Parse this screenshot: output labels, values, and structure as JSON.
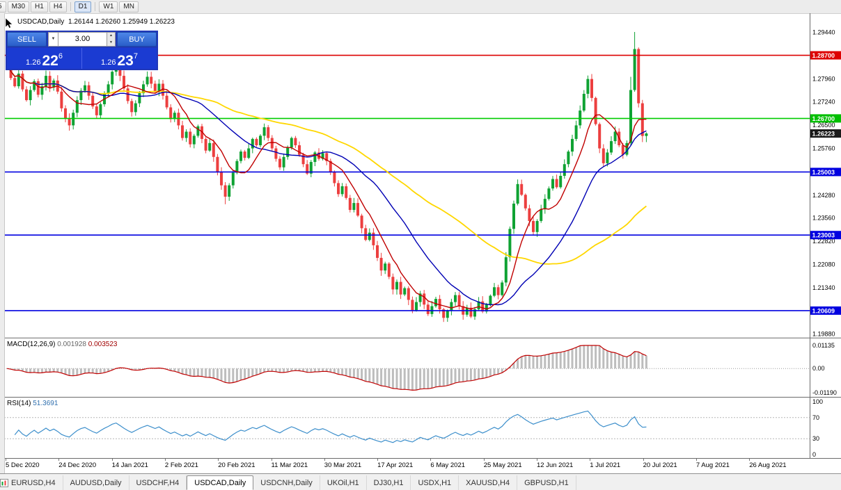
{
  "toolbar": {
    "timeframes": [
      {
        "label": "5",
        "active": false,
        "sep": false
      },
      {
        "label": "M30",
        "active": false,
        "sep": false
      },
      {
        "label": "H1",
        "active": false,
        "sep": false
      },
      {
        "label": "H4",
        "active": false,
        "sep": true
      },
      {
        "label": "D1",
        "active": true,
        "sep": true
      },
      {
        "label": "W1",
        "active": false,
        "sep": false
      },
      {
        "label": "MN",
        "active": false,
        "sep": false
      }
    ]
  },
  "chart": {
    "title": "USDCAD,Daily",
    "ohlc": "1.26144 1.26260 1.25949 1.26223"
  },
  "trade_panel": {
    "sell_label": "SELL",
    "buy_label": "BUY",
    "volume": "3.00",
    "dropdown_icon": "▼",
    "spin_up_icon": "▲",
    "spin_down_icon": "▼",
    "sell_price": {
      "small": "1.26",
      "big": "22",
      "sup": "6"
    },
    "buy_price": {
      "small": "1.26",
      "big": "23",
      "sup": "7"
    }
  },
  "price_axis": {
    "labels": [
      "1.29440",
      "1.27960",
      "1.27240",
      "1.26500",
      "1.25760",
      "1.24280",
      "1.23560",
      "1.22820",
      "1.22080",
      "1.21340",
      "1.19880"
    ],
    "tags": [
      {
        "text": "1.28700",
        "bg": "#dd0000",
        "fg": "#ffffff",
        "line": true,
        "line_color": "#dd0000",
        "line_width": 1.6
      },
      {
        "text": "1.26700",
        "bg": "#00bf00",
        "fg": "#ffffff",
        "line": true,
        "line_color": "#00cc00",
        "line_width": 1.6
      },
      {
        "text": "1.26223",
        "bg": "#1a1a1a",
        "fg": "#ffffff",
        "line": false,
        "line_color": "#1a1a1a",
        "line_width": 1
      },
      {
        "text": "1.25003",
        "bg": "#0000e0",
        "fg": "#ffffff",
        "line": true,
        "line_color": "#0000e0",
        "line_width": 1.6
      },
      {
        "text": "1.23003",
        "bg": "#0000e0",
        "fg": "#ffffff",
        "line": true,
        "line_color": "#0000e0",
        "line_width": 1.6
      },
      {
        "text": "1.20609",
        "bg": "#0000e0",
        "fg": "#ffffff",
        "line": true,
        "line_color": "#0000e0",
        "line_width": 1.6
      }
    ]
  },
  "chart_data": {
    "type": "candlestick",
    "symbol": "USDCAD",
    "timeframe": "Daily",
    "ohlc_current": {
      "open": "1.26144",
      "high": "1.26260",
      "low": "1.25949",
      "close": "1.26223"
    },
    "y_axis": {
      "top": 1.2944,
      "bottom": 1.1988
    },
    "up_color": "#0fa233",
    "down_color": "#ec3f3f",
    "open_first": 1.287,
    "closes": [
      1.284,
      1.2798,
      1.2772,
      1.2812,
      1.2762,
      1.2728,
      1.276,
      1.2788,
      1.2745,
      1.2772,
      1.2805,
      1.2768,
      1.279,
      1.2755,
      1.2702,
      1.267,
      1.2648,
      1.2688,
      1.2728,
      1.2758,
      1.2775,
      1.2742,
      1.2708,
      1.268,
      1.2715,
      1.2748,
      1.2778,
      1.2818,
      1.284,
      1.2805,
      1.2765,
      1.2725,
      1.269,
      1.2718,
      1.275,
      1.2778,
      1.2802,
      1.278,
      1.2755,
      1.278,
      1.2742,
      1.2705,
      1.2668,
      1.2688,
      1.2648,
      1.2608,
      1.2628,
      1.2588,
      1.2615,
      1.2645,
      1.2605,
      1.2568,
      1.2592,
      1.2548,
      1.25,
      1.2458,
      1.2422,
      1.2458,
      1.2498,
      1.2535,
      1.2565,
      1.2545,
      1.2575,
      1.2605,
      1.2585,
      1.2615,
      1.2642,
      1.2608,
      1.2575,
      1.2542,
      1.2515,
      1.2548,
      1.2578,
      1.2608,
      1.2585,
      1.2555,
      1.2525,
      1.2495,
      1.2532,
      1.2562,
      1.2542,
      1.256,
      1.2535,
      1.25,
      1.2465,
      1.243,
      1.2455,
      1.2418,
      1.238,
      1.2402,
      1.2362,
      1.2322,
      1.2285,
      1.2308,
      1.2268,
      1.2228,
      1.2188,
      1.221,
      1.2168,
      1.2128,
      1.2152,
      1.2112,
      1.2132,
      1.2095,
      1.2062,
      1.2088,
      1.2115,
      1.208,
      1.205,
      1.2075,
      1.2098,
      1.2065,
      1.2038,
      1.206,
      1.2088,
      1.211,
      1.2075,
      1.2048,
      1.207,
      1.2042,
      1.2065,
      1.209,
      1.2058,
      1.208,
      1.2108,
      1.2135,
      1.211,
      1.215,
      1.223,
      1.232,
      1.24,
      1.2462,
      1.2428,
      1.2385,
      1.2345,
      1.231,
      1.2345,
      1.2382,
      1.2415,
      1.2448,
      1.2478,
      1.2452,
      1.2488,
      1.2525,
      1.2565,
      1.2605,
      1.2648,
      1.2695,
      1.2748,
      1.2795,
      1.2735,
      1.2652,
      1.2575,
      1.2528,
      1.2562,
      1.2598,
      1.2628,
      1.2585,
      1.2555,
      1.2592,
      1.276,
      1.289,
      1.2718,
      1.26144,
      1.26223
    ],
    "wick_overrides": {
      "high": {
        "28": 1.2852,
        "149": 1.2806,
        "160": 1.2802,
        "161": 1.2944,
        "164": 1.2626
      },
      "low": {
        "56": 1.2398,
        "112": 1.2025,
        "117": 1.2032,
        "163": 1.2595,
        "164": 1.25949
      }
    },
    "moving_averages": [
      {
        "period": 55,
        "color": "#ffd700",
        "width": 1.8
      },
      {
        "period": 24,
        "color": "#0000b4",
        "width": 1.4
      },
      {
        "period": 8,
        "color": "#c00000",
        "width": 1.4
      }
    ],
    "x_labels": [
      "5 Dec 2020",
      "24 Dec 2020",
      "14 Jan 2021",
      "2 Feb 2021",
      "20 Feb 2021",
      "11 Mar 2021",
      "30 Mar 2021",
      "17 Apr 2021",
      "6 May 2021",
      "25 May 2021",
      "12 Jun 2021",
      "1 Jul 2021",
      "20 Jul 2021",
      "7 Aug 2021",
      "26 Aug 2021"
    ]
  },
  "macd": {
    "label": "MACD(12,26,9)",
    "value_main": "0.001928",
    "value_signal": "0.003523",
    "params": {
      "fast": 12,
      "slow": 26,
      "signal": 9
    },
    "axis": {
      "top": "0.01135",
      "mid": "0.00",
      "bottom": "-0.01190"
    },
    "axis_top_value": 0.01135,
    "axis_bottom_value": -0.0119,
    "hist_color": "#bdbdbd",
    "signal_color": "#c00000"
  },
  "rsi": {
    "label": "RSI(14)",
    "value": "51.3691",
    "period": 14,
    "axis": [
      "100",
      "70",
      "30",
      "0"
    ],
    "levels": [
      70,
      30
    ],
    "line_color": "#3b8ecb"
  },
  "tabs": [
    {
      "label": "EURUSD,H4",
      "active": false
    },
    {
      "label": "AUDUSD,Daily",
      "active": false
    },
    {
      "label": "USDCHF,H4",
      "active": false
    },
    {
      "label": "USDCAD,Daily",
      "active": true
    },
    {
      "label": "USDCNH,Daily",
      "active": false
    },
    {
      "label": "UKOil,H1",
      "active": false
    },
    {
      "label": "DJ30,H1",
      "active": false
    },
    {
      "label": "USDX,H1",
      "active": false
    },
    {
      "label": "XAUUSD,H4",
      "active": false
    },
    {
      "label": "GBPUSD,H1",
      "active": false
    }
  ]
}
